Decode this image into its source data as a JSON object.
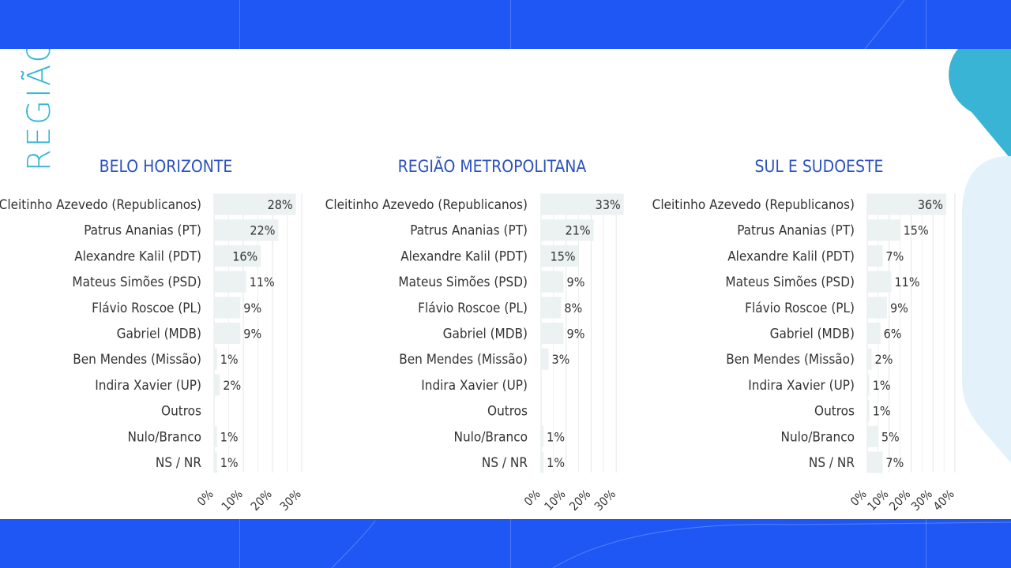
{
  "page": {
    "region_label": "REGIÃO",
    "colors": {
      "band": "#1f57f5",
      "panel": "#ffffff",
      "title": "#2a52be",
      "region_label": "#38b6d6",
      "bar": "#ecf1f1",
      "text": "#333333",
      "grid": "#e3e7e7",
      "accent_teal": "#3ab4d4",
      "accent_light": "#e3f2fa"
    }
  },
  "chart_data": [
    {
      "type": "bar",
      "orientation": "horizontal",
      "title": "BELO HORIZONTE",
      "categories": [
        "Cleitinho Azevedo (Republicanos)",
        "Patrus Ananias (PT)",
        "Alexandre Kalil (PDT)",
        "Mateus Simões (PSD)",
        "Flávio Roscoe (PL)",
        "Gabriel (MDB)",
        "Ben Mendes (Missão)",
        "Indira Xavier (UP)",
        "Outros",
        "Nulo/Branco",
        "NS / NR"
      ],
      "values": [
        28,
        22,
        16,
        11,
        9,
        9,
        1,
        2,
        0,
        1,
        1
      ],
      "value_labels": [
        "28%",
        "22%",
        "16%",
        "11%",
        "9%",
        "9%",
        "1%",
        "2%",
        "",
        "1%",
        "1%"
      ],
      "xlim": [
        0,
        30
      ],
      "ticks": [
        0,
        10,
        20,
        30
      ],
      "tick_labels": [
        "0%",
        "10%",
        "20%",
        "30%"
      ],
      "grid": true,
      "legend": "none"
    },
    {
      "type": "bar",
      "orientation": "horizontal",
      "title": "REGIÃO METROPOLITANA",
      "categories": [
        "Cleitinho Azevedo (Republicanos)",
        "Patrus Ananias (PT)",
        "Alexandre Kalil (PDT)",
        "Mateus Simões (PSD)",
        "Flávio Roscoe (PL)",
        "Gabriel (MDB)",
        "Ben Mendes (Missão)",
        "Indira Xavier (UP)",
        "Outros",
        "Nulo/Branco",
        "NS / NR"
      ],
      "values": [
        33,
        21,
        15,
        9,
        8,
        9,
        3,
        0,
        0,
        1,
        1
      ],
      "value_labels": [
        "33%",
        "21%",
        "15%",
        "9%",
        "8%",
        "9%",
        "3%",
        "",
        "",
        "1%",
        "1%"
      ],
      "xlim": [
        0,
        35
      ],
      "ticks": [
        0,
        10,
        20,
        30
      ],
      "tick_labels": [
        "0%",
        "10%",
        "20%",
        "30%"
      ],
      "grid": true,
      "legend": "none"
    },
    {
      "type": "bar",
      "orientation": "horizontal",
      "title": "SUL E SUDOESTE",
      "categories": [
        "Cleitinho Azevedo (Republicanos)",
        "Patrus Ananias (PT)",
        "Alexandre Kalil (PDT)",
        "Mateus Simões (PSD)",
        "Flávio Roscoe (PL)",
        "Gabriel (MDB)",
        "Ben Mendes (Missão)",
        "Indira Xavier (UP)",
        "Outros",
        "Nulo/Branco",
        "NS / NR"
      ],
      "values": [
        36,
        15,
        7,
        11,
        9,
        6,
        2,
        1,
        1,
        5,
        7
      ],
      "value_labels": [
        "36%",
        "15%",
        "7%",
        "11%",
        "9%",
        "6%",
        "2%",
        "1%",
        "1%",
        "5%",
        "7%"
      ],
      "xlim": [
        0,
        40
      ],
      "ticks": [
        0,
        10,
        20,
        30,
        40
      ],
      "tick_labels": [
        "0%",
        "10%",
        "20%",
        "30%",
        "40%"
      ],
      "grid": true,
      "legend": "none"
    }
  ]
}
